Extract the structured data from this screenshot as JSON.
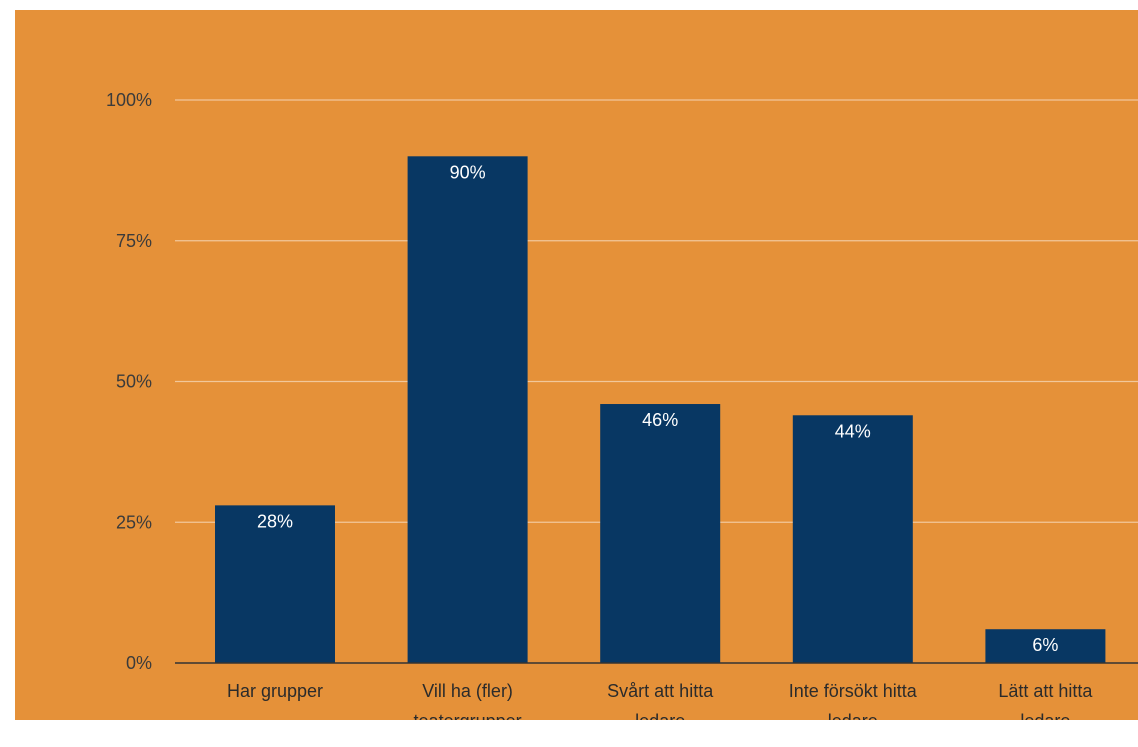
{
  "chart_data": {
    "type": "bar",
    "categories": [
      [
        "Har grupper"
      ],
      [
        "Vill ha (fler)",
        "teatergrupper"
      ],
      [
        "Svårt att hitta",
        "ledare"
      ],
      [
        "Inte försökt hitta",
        "ledare"
      ],
      [
        "Lätt att hitta",
        "ledare"
      ]
    ],
    "values": [
      28,
      90,
      46,
      44,
      6
    ],
    "data_labels": [
      "28%",
      "90%",
      "46%",
      "44%",
      "6%"
    ],
    "yticks": [
      0,
      25,
      50,
      75,
      100
    ],
    "ytick_labels": [
      "0%",
      "25%",
      "50%",
      "75%",
      "100%"
    ],
    "ylim": [
      0,
      100
    ],
    "grid": true,
    "title": "",
    "xlabel": "",
    "ylabel": "",
    "colors": {
      "background": "#E59139",
      "bar": "#083763",
      "gridline": "#F2C79A",
      "baseline": "#333333",
      "data_label": "#FFFFFF"
    }
  }
}
